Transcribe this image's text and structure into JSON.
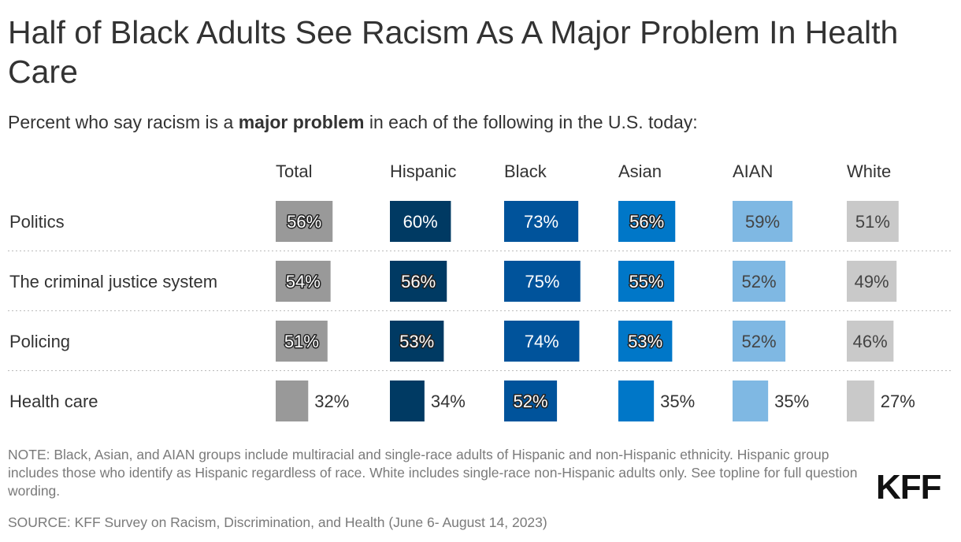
{
  "title": "Half of Black Adults See Racism As A Major Problem In Health Care",
  "subtitle": {
    "before": "Percent who say racism is a ",
    "bold": "major problem",
    "after": " in each of the following in the U.S. today:"
  },
  "note": "NOTE: Black, Asian, and AIAN groups include multiracial and single-race adults of Hispanic and non-Hispanic ethnicity. Hispanic group includes those who identify as Hispanic regardless of race. White includes single-race non-Hispanic adults only. See topline for full question wording.",
  "source": "SOURCE: KFF Survey on Racism, Discrimination, and Health (June 6- August 14, 2023)",
  "logo": "KFF",
  "chart_data": {
    "type": "bar",
    "orientation": "horizontal",
    "layout": "small-multiples",
    "unit": "%",
    "categories": [
      "Politics",
      "The criminal justice system",
      "Policing",
      "Health care"
    ],
    "series": [
      {
        "name": "Total",
        "color": "#999999",
        "values": [
          56,
          54,
          51,
          32
        ]
      },
      {
        "name": "Hispanic",
        "color": "#003A63",
        "values": [
          60,
          56,
          53,
          34
        ]
      },
      {
        "name": "Black",
        "color": "#00539B",
        "values": [
          73,
          75,
          74,
          52
        ]
      },
      {
        "name": "Asian",
        "color": "#0077C8",
        "values": [
          56,
          55,
          53,
          35
        ]
      },
      {
        "name": "AIAN",
        "color": "#7FB8E3",
        "values": [
          59,
          52,
          52,
          35
        ]
      },
      {
        "name": "White",
        "color": "#C9C9C9",
        "values": [
          51,
          49,
          46,
          27
        ]
      }
    ],
    "grid": "dotted row separators",
    "legend": "column headers"
  }
}
